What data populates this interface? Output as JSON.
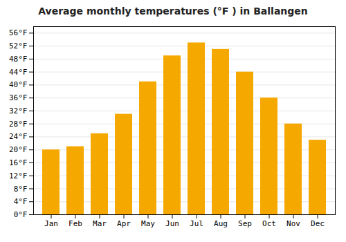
{
  "chart_data": {
    "type": "bar",
    "title": "Average monthly temperatures (°F ) in Ballangen",
    "categories": [
      "Jan",
      "Feb",
      "Mar",
      "Apr",
      "May",
      "Jun",
      "Jul",
      "Aug",
      "Sep",
      "Oct",
      "Nov",
      "Dec"
    ],
    "values": [
      20,
      21,
      25,
      31,
      41,
      49,
      53,
      51,
      44,
      36,
      28,
      23
    ],
    "color": "#F5A800",
    "ylim": [
      0,
      58
    ],
    "yticks": [
      {
        "value": 0,
        "label": "0°F"
      },
      {
        "value": 4,
        "label": "4°F"
      },
      {
        "value": 8,
        "label": "8°F"
      },
      {
        "value": 12,
        "label": "12°F"
      },
      {
        "value": 16,
        "label": "16°F"
      },
      {
        "value": 20,
        "label": "20°F"
      },
      {
        "value": 24,
        "label": "24°F"
      },
      {
        "value": 28,
        "label": "28°F"
      },
      {
        "value": 32,
        "label": "32°F"
      },
      {
        "value": 36,
        "label": "36°F"
      },
      {
        "value": 40,
        "label": "40°F"
      },
      {
        "value": 44,
        "label": "44°F"
      },
      {
        "value": 48,
        "label": "48°F"
      },
      {
        "value": 52,
        "label": "52°F"
      },
      {
        "value": 56,
        "label": "56°F"
      }
    ],
    "grid": true
  }
}
